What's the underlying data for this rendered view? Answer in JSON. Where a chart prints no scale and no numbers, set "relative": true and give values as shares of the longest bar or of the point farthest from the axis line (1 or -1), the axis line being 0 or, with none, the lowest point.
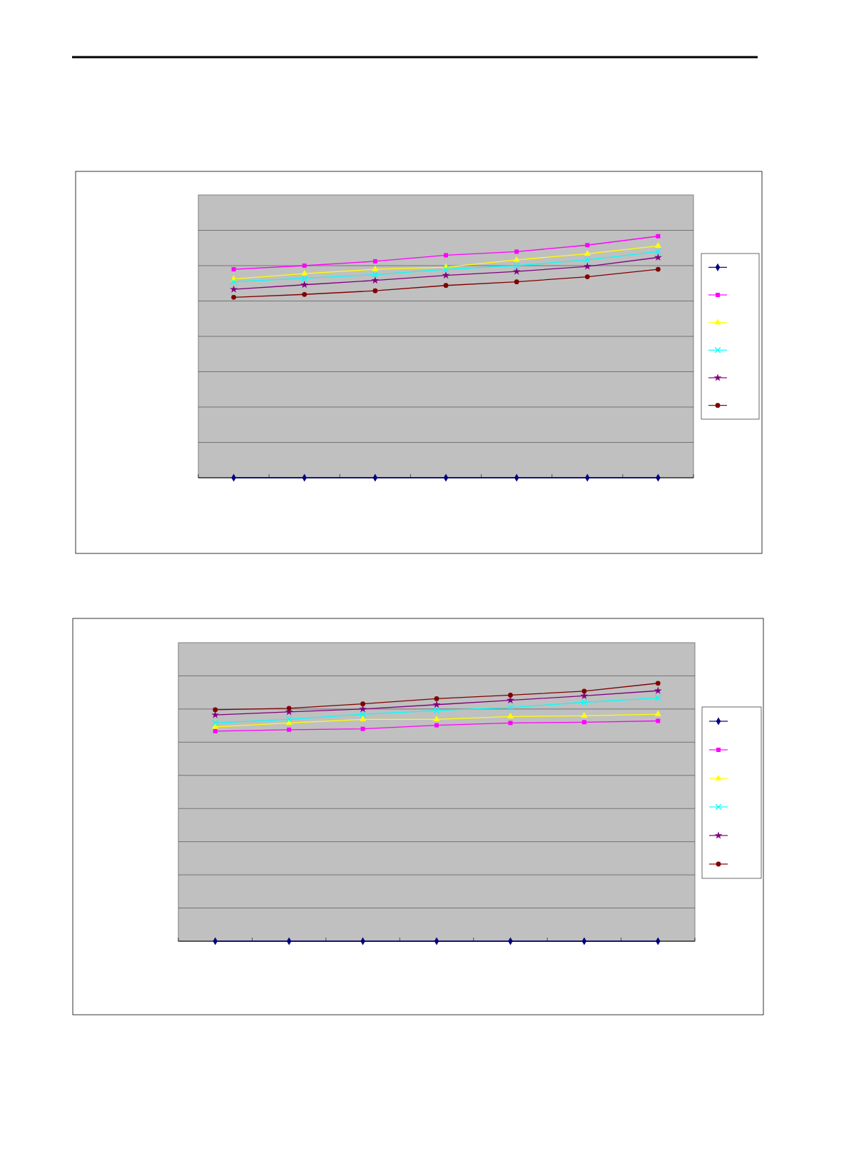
{
  "chart_data": [
    {
      "type": "line",
      "relative": true,
      "categories": [
        null,
        null,
        null,
        null,
        null,
        null,
        null
      ],
      "grid": "y",
      "series": [
        {
          "color": "#000080",
          "marker": "diamond",
          "values": [
            0,
            0,
            0,
            0,
            0,
            0,
            0
          ]
        },
        {
          "color": "#ff00ff",
          "marker": "square",
          "values": [
            0.863,
            0.878,
            0.896,
            0.921,
            0.936,
            0.963,
            1
          ]
        },
        {
          "color": "#ffff00",
          "marker": "triangle",
          "values": [
            0.823,
            0.845,
            0.863,
            0.872,
            0.902,
            0.927,
            0.96
          ]
        },
        {
          "color": "#00ffff",
          "marker": "cross",
          "values": [
            0.811,
            0.826,
            0.841,
            0.863,
            0.878,
            0.902,
            0.936
          ]
        },
        {
          "color": "#800080",
          "marker": "star",
          "values": [
            0.78,
            0.799,
            0.817,
            0.838,
            0.854,
            0.875,
            0.912
          ]
        },
        {
          "color": "#800000",
          "marker": "circle",
          "values": [
            0.747,
            0.759,
            0.774,
            0.796,
            0.811,
            0.832,
            0.863
          ]
        }
      ]
    },
    {
      "type": "line",
      "relative": true,
      "categories": [
        null,
        null,
        null,
        null,
        null,
        null,
        null
      ],
      "grid": "y",
      "series": [
        {
          "color": "#000080",
          "marker": "diamond",
          "values": [
            0,
            0,
            0,
            0,
            0,
            0,
            0
          ]
        },
        {
          "color": "#ff00ff",
          "marker": "square",
          "values": [
            0.814,
            0.82,
            0.823,
            0.837,
            0.846,
            0.849,
            0.854
          ]
        },
        {
          "color": "#ffff00",
          "marker": "triangle",
          "values": [
            0.831,
            0.846,
            0.86,
            0.86,
            0.871,
            0.874,
            0.88
          ]
        },
        {
          "color": "#00ffff",
          "marker": "cross",
          "values": [
            0.846,
            0.86,
            0.88,
            0.894,
            0.906,
            0.926,
            0.943
          ]
        },
        {
          "color": "#800080",
          "marker": "star",
          "values": [
            0.877,
            0.889,
            0.9,
            0.917,
            0.934,
            0.951,
            0.971
          ]
        },
        {
          "color": "#800000",
          "marker": "circle",
          "values": [
            0.897,
            0.903,
            0.92,
            0.94,
            0.954,
            0.969,
            1
          ]
        }
      ]
    }
  ]
}
